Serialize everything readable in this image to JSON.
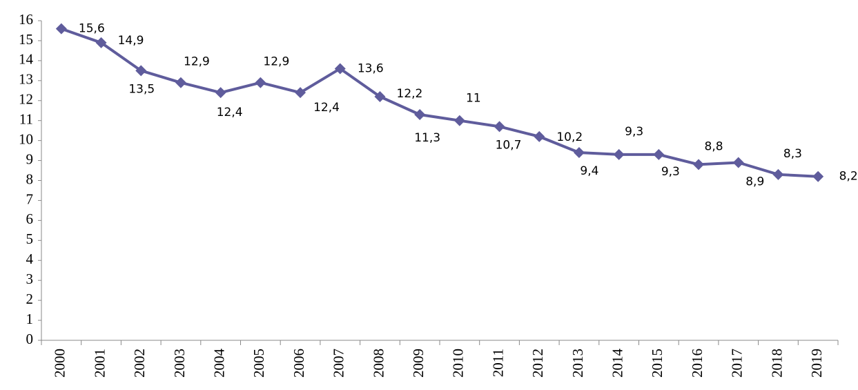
{
  "chart_data": {
    "type": "line",
    "categories": [
      "2000",
      "2001",
      "2002",
      "2003",
      "2004",
      "2005",
      "2006",
      "2007",
      "2008",
      "2009",
      "2010",
      "2011",
      "2012",
      "2013",
      "2014",
      "2015",
      "2016",
      "2017",
      "2018",
      "2019"
    ],
    "series": [
      {
        "color": "#5f5c9c",
        "values": [
          15.6,
          14.9,
          13.5,
          12.9,
          12.4,
          12.9,
          12.4,
          13.6,
          12.2,
          11.3,
          11,
          10.7,
          10.2,
          9.4,
          9.3,
          9.3,
          8.8,
          8.9,
          8.3,
          8.2
        ],
        "value_labels": [
          "15,6",
          "14,9",
          "13,5",
          "12,9",
          "12,4",
          "12,9",
          "12,4",
          "13,6",
          "12,2",
          "11,3",
          "11",
          "10,7",
          "10,2",
          "9,4",
          "9,3",
          "9,3",
          "8,8",
          "8,9",
          "8,3",
          "8,2"
        ]
      }
    ],
    "ylim": [
      0,
      16
    ],
    "yticks": [
      0,
      1,
      2,
      3,
      4,
      5,
      6,
      7,
      8,
      9,
      10,
      11,
      12,
      13,
      14,
      15,
      16
    ],
    "grid": false
  }
}
